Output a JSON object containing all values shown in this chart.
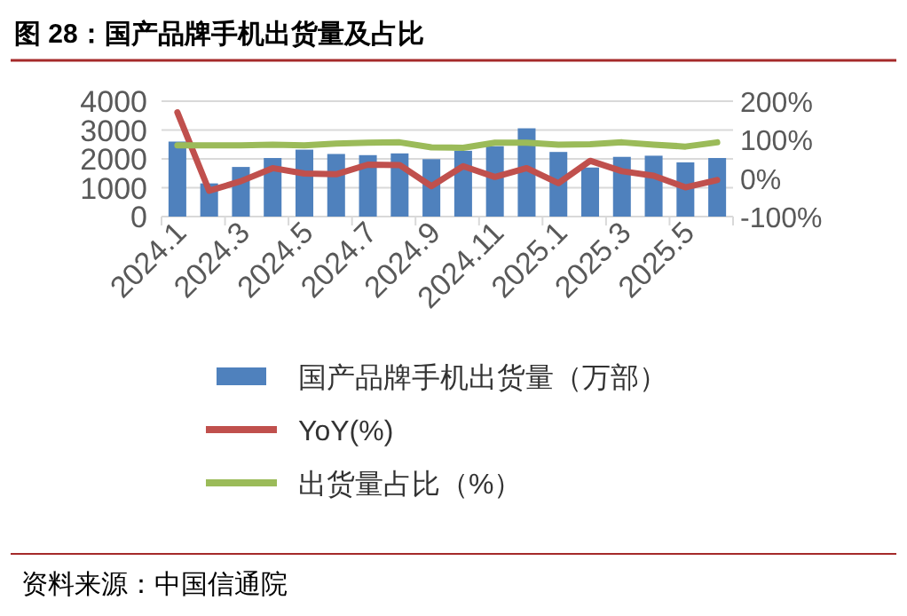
{
  "chart_data": {
    "type": "bar",
    "title": "图 28：国产品牌手机出货量及占比",
    "categories": [
      "2024.1",
      null,
      "2024.3",
      null,
      "2024.5",
      null,
      "2024.7",
      null,
      "2024.9",
      null,
      "2024.11",
      null,
      "2025.1",
      null,
      "2025.3",
      null,
      "2025.5",
      null
    ],
    "series": [
      {
        "name": "国产品牌手机出货量（万部）",
        "color": "#4f81bd",
        "values": [
          2600,
          1150,
          1720,
          2030,
          2320,
          2170,
          2130,
          2190,
          1990,
          2280,
          2440,
          3060,
          2240,
          1700,
          2070,
          2110,
          1880,
          2030
        ]
      },
      {
        "name": "YoY(%)",
        "type": "line",
        "axis": "y2",
        "color": "#c0504d",
        "values": [
          171,
          -33,
          -8,
          26,
          12,
          10,
          35,
          34,
          -21,
          31,
          3,
          26,
          -13,
          45,
          18,
          6,
          -24,
          -5
        ]
      },
      {
        "name": "出货量占比（%）",
        "type": "line",
        "axis": "y2",
        "color": "#9bbb59",
        "values": [
          85,
          85,
          85,
          87,
          85,
          90,
          92,
          93,
          80,
          79,
          92,
          92,
          87,
          88,
          93,
          87,
          82,
          93
        ]
      }
    ],
    "ylim": [
      0,
      4000
    ],
    "yticks": [
      0,
      1000,
      2000,
      3000,
      4000
    ],
    "y2lim": [
      -100,
      200
    ],
    "y2ticks": [
      {
        "value": -100,
        "label": "-100%"
      },
      {
        "value": 0,
        "label": "0%"
      },
      {
        "value": 100,
        "label": "100%"
      },
      {
        "value": 200,
        "label": "200%"
      }
    ],
    "grid": "y",
    "legend": "bottom",
    "annotations": [
      "资料来源：中国信通院"
    ]
  }
}
